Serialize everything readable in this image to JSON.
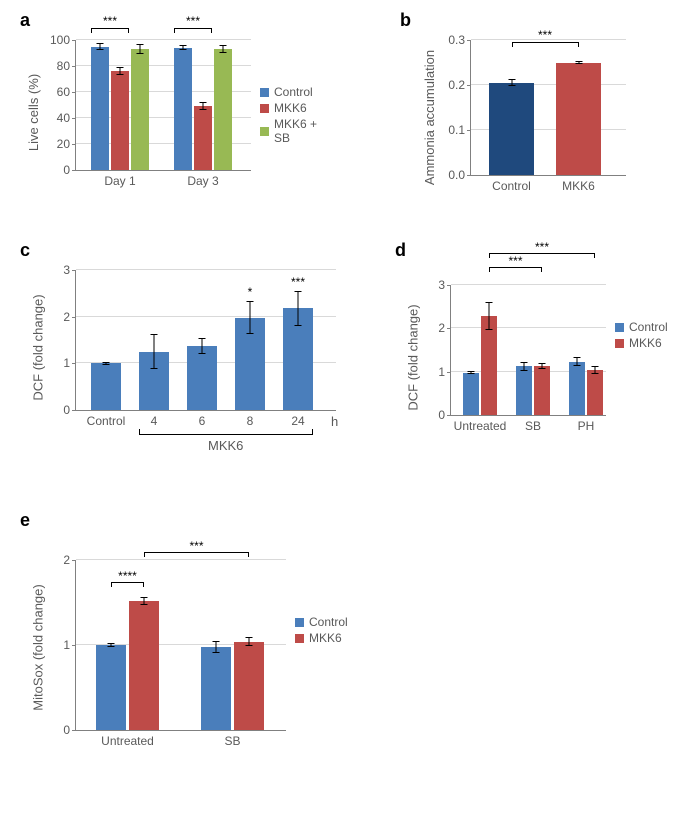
{
  "colors": {
    "blue": "#4a7ebb",
    "red": "#be4b48",
    "green": "#98b954",
    "dark_blue": "#1f497d"
  },
  "panel_a": {
    "label": "a",
    "ylabel": "Live cells (%)",
    "ymax": 100,
    "ytick_step": 20,
    "groups": [
      "Day 1",
      "Day 3"
    ],
    "legend": [
      "Control",
      "MKK6",
      "MKK6 + SB"
    ],
    "data": {
      "Day 1": {
        "Control": 95,
        "MKK6": 76,
        "MKK6 + SB": 93
      },
      "Day 3": {
        "Control": 94,
        "MKK6": 49,
        "MKK6 + SB": 93
      }
    },
    "errors": {
      "Day 1": {
        "Control": 3,
        "MKK6": 3,
        "MKK6 + SB": 4
      },
      "Day 3": {
        "Control": 2,
        "MKK6": 3,
        "MKK6 + SB": 3
      }
    },
    "sig": [
      {
        "group": "Day 1",
        "label": "***"
      },
      {
        "group": "Day 3",
        "label": "***"
      }
    ]
  },
  "panel_b": {
    "label": "b",
    "ylabel": "Ammonia accumulation",
    "ymax": 0.3,
    "ytick_step": 0.1,
    "categories": [
      "Control",
      "MKK6"
    ],
    "values": {
      "Control": 0.205,
      "MKK6": 0.25
    },
    "errors": {
      "Control": 0.008,
      "MKK6": 0.004
    },
    "sig_label": "***"
  },
  "panel_c": {
    "label": "c",
    "ylabel": "DCF (fold change)",
    "ymax": 3,
    "ytick_step": 1,
    "categories": [
      "Control",
      "4",
      "6",
      "8",
      "24"
    ],
    "values": {
      "Control": 1.0,
      "4": 1.25,
      "6": 1.37,
      "8": 1.98,
      "24": 2.18
    },
    "errors": {
      "Control": 0.03,
      "4": 0.38,
      "6": 0.17,
      "8": 0.35,
      "24": 0.38
    },
    "range_label": "MKK6",
    "time_unit": "h",
    "sig": {
      "8": "*",
      "24": "***"
    }
  },
  "panel_d": {
    "label": "d",
    "ylabel": "DCF (fold change)",
    "ymax": 3,
    "ytick_step": 1,
    "groups": [
      "Untreated",
      "SB",
      "PH"
    ],
    "legend": [
      "Control",
      "MKK6"
    ],
    "data": {
      "Untreated": {
        "Control": 0.98,
        "MKK6": 2.28
      },
      "SB": {
        "Control": 1.12,
        "MKK6": 1.13
      },
      "PH": {
        "Control": 1.23,
        "MKK6": 1.04
      }
    },
    "errors": {
      "Untreated": {
        "Control": 0.04,
        "MKK6": 0.32
      },
      "SB": {
        "Control": 0.1,
        "MKK6": 0.07
      },
      "PH": {
        "Control": 0.1,
        "MKK6": 0.1
      }
    },
    "sig": [
      {
        "label": "***"
      },
      {
        "label": "***"
      }
    ]
  },
  "panel_e": {
    "label": "e",
    "ylabel": "MitoSox (fold change)",
    "ymax": 2,
    "ytick_step": 1,
    "groups": [
      "Untreated",
      "SB"
    ],
    "legend": [
      "Control",
      "MKK6"
    ],
    "data": {
      "Untreated": {
        "Control": 1.0,
        "MKK6": 1.52
      },
      "SB": {
        "Control": 0.98,
        "MKK6": 1.04
      }
    },
    "errors": {
      "Untreated": {
        "Control": 0.02,
        "MKK6": 0.05
      },
      "SB": {
        "Control": 0.07,
        "MKK6": 0.05
      }
    },
    "sig": [
      {
        "label": "****"
      },
      {
        "label": "***"
      }
    ]
  }
}
